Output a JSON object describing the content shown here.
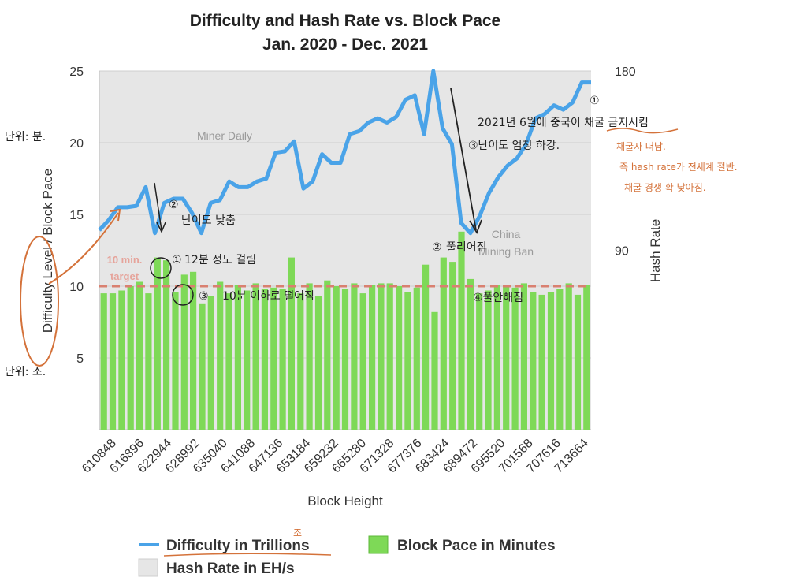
{
  "chart_data": {
    "type": "bar",
    "title": "Difficulty and Hash Rate vs. Block Pace",
    "subtitle": "Jan. 2020 - Dec. 2021",
    "xlabel": "Block Height",
    "ylabel_left": "Difficulty Level / Block Pace",
    "ylabel_right": "Hash Rate",
    "ylim_left": [
      0,
      25
    ],
    "ylim_right": [
      0,
      180
    ],
    "y_ticks_left": [
      "5",
      "10",
      "15",
      "20",
      "25"
    ],
    "y_ticks_right": [
      "90",
      "180"
    ],
    "x_tick_labels": [
      "610848",
      "616896",
      "622944",
      "628992",
      "635040",
      "641088",
      "647136",
      "653184",
      "659232",
      "665280",
      "671328",
      "677376",
      "683424",
      "689472",
      "695520",
      "701568",
      "707616",
      "713664"
    ],
    "target": {
      "value": 10,
      "label_line1": "10 min.",
      "label_line2": "target"
    },
    "series": [
      {
        "name": "Block Pace in Minutes",
        "kind": "bar",
        "color": "#7ed957",
        "values": [
          9.5,
          9.5,
          9.7,
          10,
          10.3,
          9.5,
          12,
          11.8,
          9.6,
          10.8,
          11,
          8.8,
          9.3,
          10.3,
          9.5,
          10.1,
          9.7,
          10.2,
          9.8,
          9.9,
          9.8,
          12,
          9.5,
          10.2,
          9.3,
          10.4,
          10,
          9.8,
          10.2,
          9.5,
          10.1,
          10.2,
          10.2,
          10,
          9.6,
          9.9,
          11.5,
          8.2,
          12,
          11.7,
          13.8,
          10.5,
          9.5,
          9.7,
          10.1,
          10,
          9.9,
          10.2,
          9.6,
          9.4,
          9.6,
          9.8,
          10.2,
          9.4,
          10.1
        ]
      },
      {
        "name": "Difficulty in Trillions",
        "kind": "line",
        "color": "#4aa3e8",
        "values": [
          13.9,
          14.6,
          15.5,
          15.5,
          15.6,
          16.9,
          13.7,
          15.8,
          16.1,
          16.1,
          15.1,
          13.7,
          15.8,
          16,
          17.3,
          16.9,
          16.9,
          17.3,
          17.5,
          19.3,
          19.4,
          20.1,
          16.8,
          17.3,
          19.2,
          18.6,
          18.6,
          20.6,
          20.8,
          21.4,
          21.7,
          21.4,
          21.8,
          23,
          23.3,
          20.6,
          25,
          21,
          19.9,
          14.4,
          13.7,
          14.9,
          16.5,
          17.6,
          18.4,
          18.9,
          19.9,
          21.7,
          22,
          22.6,
          22.3,
          22.8,
          24.2,
          24.2
        ]
      },
      {
        "name": "Hash Rate in EH/s",
        "kind": "area",
        "color": "#e6e6e6"
      }
    ],
    "annotations_printed": {
      "miner_daily": "Miner Daily",
      "china_line1": "China",
      "china_line2": "Mining Ban"
    },
    "legend": {
      "placement": "bottom",
      "difficulty": "Difficulty in Trillions",
      "block_pace": "Block Pace in Minutes",
      "hash_rate": "Hash Rate in EH/s"
    }
  },
  "handwritten": {
    "unit_minute": "단위: 분.",
    "unit_trillion": "단위: 조.",
    "trillion_mark": "조",
    "n1_num": "①",
    "n1_text": "12분 정도 걸림",
    "n2_num": "②",
    "n2_text": "난이도 낮춤",
    "n3_num": "③",
    "n3_text": "10분 이하로 떨어짐",
    "m1_num": "①",
    "m1_text": "2021년 6월에 중국이 채굴 금지시킴",
    "m2_num": "②",
    "m2_text": "풀리어짐",
    "m3_text": "③난이도 엄청 하강.",
    "m4_text": "④풀안해짐",
    "orange1": "채굴자 떠남.",
    "orange2": "즉 hash rate가 전세계 절반.",
    "orange3": "채굴 경쟁 확 낮아짐."
  }
}
